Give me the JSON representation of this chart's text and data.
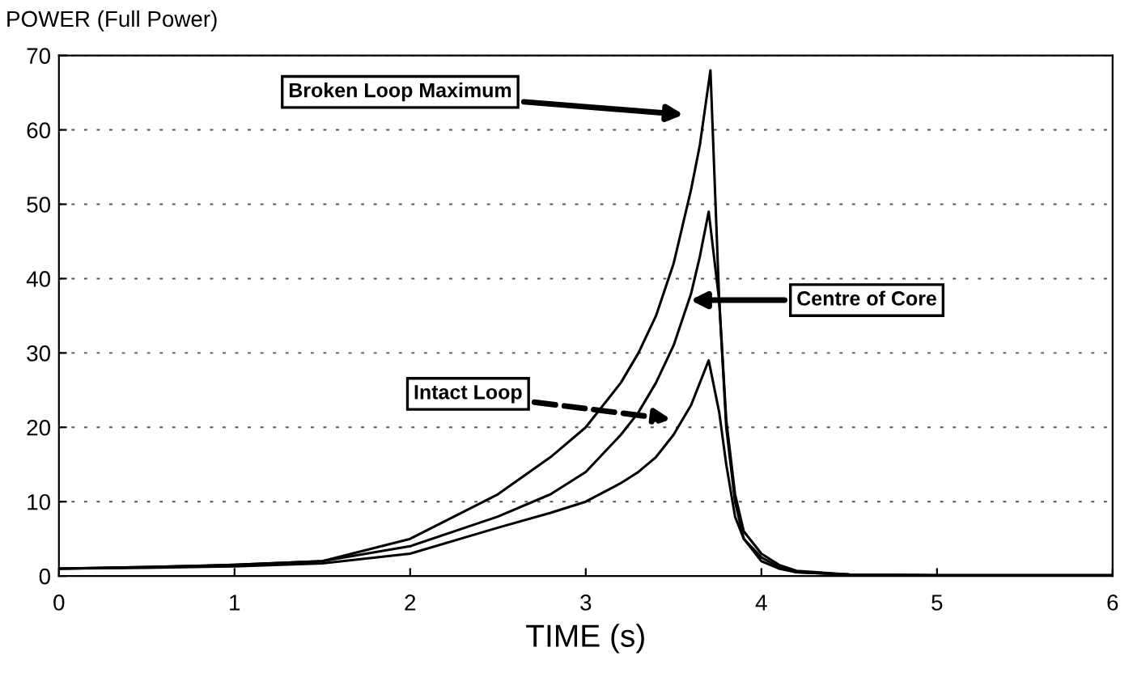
{
  "chart_data": {
    "type": "line",
    "ylabel": "POWER (Full Power)",
    "xlabel": "TIME (s)",
    "series": [
      {
        "color": "#000000",
        "x": [
          0,
          0.5,
          1,
          1.5,
          2,
          2.5,
          2.8,
          3,
          3.2,
          3.3,
          3.4,
          3.5,
          3.6,
          3.65,
          3.71,
          3.76,
          3.8,
          3.85,
          3.9,
          4.0,
          4.1,
          4.2,
          4.5,
          5,
          6
        ],
        "values": [
          1,
          1.2,
          1.5,
          2,
          5,
          11,
          16,
          20,
          26,
          30,
          35,
          42,
          52,
          58,
          68,
          37,
          20,
          10,
          5,
          2,
          1,
          0.5,
          0.2,
          0.1,
          0.1
        ]
      },
      {
        "color": "#000000",
        "x": [
          0,
          0.5,
          1,
          1.5,
          2,
          2.5,
          2.8,
          3,
          3.2,
          3.3,
          3.4,
          3.5,
          3.6,
          3.65,
          3.7,
          3.76,
          3.8,
          3.85,
          3.9,
          4.0,
          4.1,
          4.2,
          4.5,
          5,
          6
        ],
        "values": [
          1,
          1.2,
          1.5,
          2,
          4,
          8,
          11,
          14,
          19,
          22,
          26,
          31,
          38,
          43,
          49,
          37,
          21,
          11,
          6,
          3,
          1.5,
          0.7,
          0.2,
          0.1,
          0.1
        ]
      },
      {
        "color": "#000000",
        "x": [
          0,
          0.5,
          1,
          1.5,
          2,
          2.5,
          2.8,
          3,
          3.2,
          3.3,
          3.4,
          3.5,
          3.6,
          3.65,
          3.7,
          3.76,
          3.8,
          3.85,
          3.9,
          4.0,
          4.1,
          4.2,
          4.5,
          5,
          6
        ],
        "values": [
          1,
          1.1,
          1.3,
          1.7,
          3,
          6.5,
          8.5,
          10,
          12.5,
          14,
          16,
          19,
          23,
          26,
          29,
          22,
          15,
          8,
          5,
          2.5,
          1.2,
          0.5,
          0.2,
          0.1,
          0.1
        ]
      }
    ],
    "xlim": [
      0,
      6
    ],
    "ylim": [
      0,
      70
    ],
    "xticks": [
      0,
      1,
      2,
      3,
      4,
      5,
      6
    ],
    "yticks": [
      0,
      10,
      20,
      30,
      40,
      50,
      60,
      70
    ],
    "grid": "y",
    "line_style": "solid",
    "marker": "none",
    "annotations": [
      "Broken Loop Maximum",
      "Centre of Core",
      "Intact Loop"
    ]
  }
}
